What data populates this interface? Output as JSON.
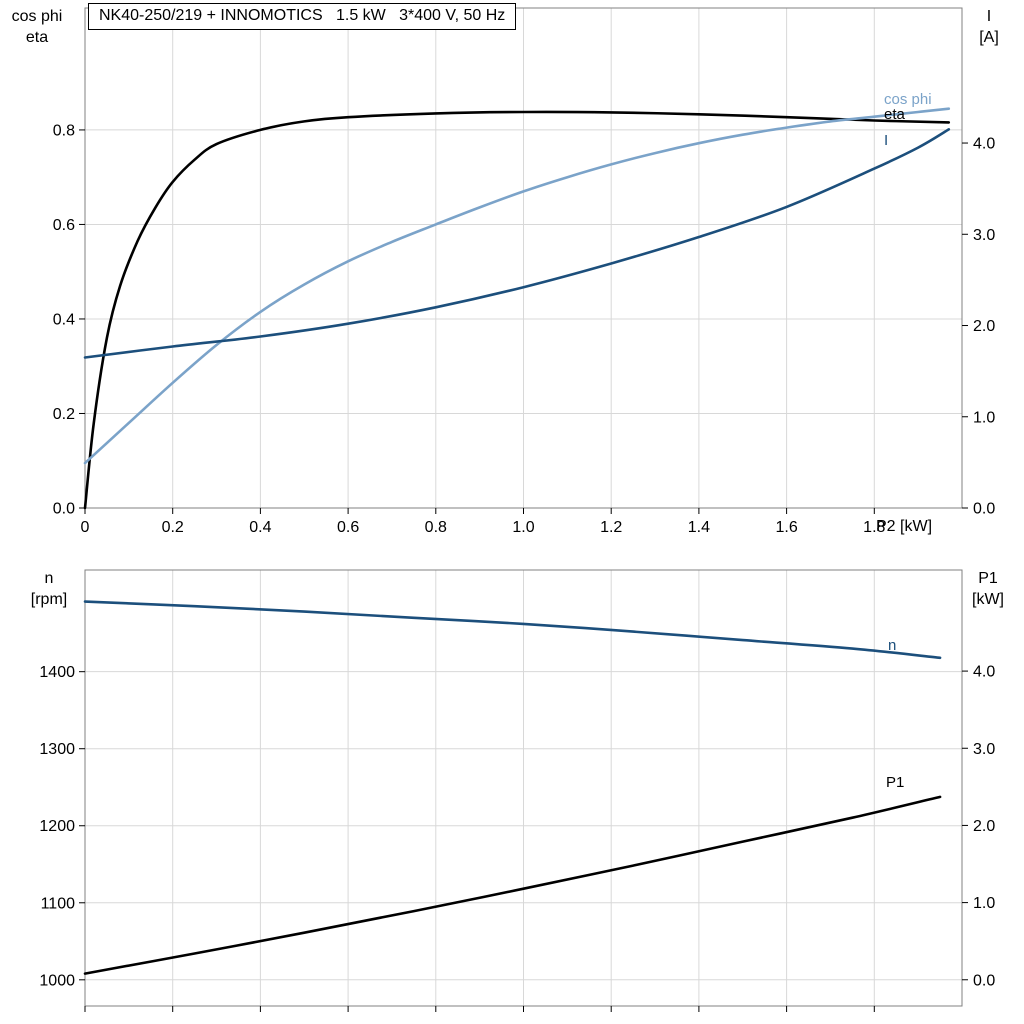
{
  "colors": {
    "grid": "#d8d8d8",
    "frame": "#808080",
    "tick": "#000000",
    "light_blue": "#7ba3c9",
    "dark_blue": "#1c4f7c",
    "black": "#000000"
  },
  "chart_data": [
    {
      "type": "line",
      "title": "NK40-250/219 + INNOMOTICS   1.5 kW   3*400 V, 50 Hz",
      "plot": {
        "x0": 85,
        "y0": 8,
        "x1": 962,
        "y1": 508
      },
      "grid": true,
      "x_axis": {
        "label": "P2 [kW]",
        "range": [
          0,
          2.0
        ],
        "ticks": [
          0,
          0.2,
          0.4,
          0.6,
          0.8,
          1.0,
          1.2,
          1.4,
          1.6,
          1.8
        ],
        "tick_labels": [
          "0",
          "0.2",
          "0.4",
          "0.6",
          "0.8",
          "1.0",
          "1.2",
          "1.4",
          "1.6",
          "1.8"
        ],
        "show_labels": true
      },
      "left_axis": {
        "label_lines": [
          "cos phi",
          "eta"
        ],
        "range": [
          0,
          1.058
        ],
        "ticks": [
          0,
          0.2,
          0.4,
          0.6,
          0.8
        ],
        "tick_labels": [
          "0.0",
          "0.2",
          "0.4",
          "0.6",
          "0.8"
        ]
      },
      "right_axis": {
        "label_lines": [
          "I",
          "[A]"
        ],
        "range": [
          0,
          5.48
        ],
        "ticks": [
          0,
          1,
          2,
          3,
          4
        ],
        "tick_labels": [
          "0.0",
          "1.0",
          "2.0",
          "3.0",
          "4.0"
        ]
      },
      "series": [
        {
          "name": "eta",
          "label": "eta",
          "axis": "left",
          "color": "#000000",
          "x": [
            0,
            0.02,
            0.05,
            0.08,
            0.12,
            0.16,
            0.2,
            0.25,
            0.3,
            0.4,
            0.5,
            0.6,
            0.8,
            1.0,
            1.2,
            1.4,
            1.6,
            1.8,
            1.97
          ],
          "y": [
            0,
            0.18,
            0.36,
            0.47,
            0.565,
            0.635,
            0.69,
            0.737,
            0.77,
            0.8,
            0.818,
            0.827,
            0.835,
            0.838,
            0.837,
            0.833,
            0.827,
            0.82,
            0.816
          ]
        },
        {
          "name": "cos phi",
          "label": "cos phi",
          "axis": "left",
          "color": "#7ba3c9",
          "x": [
            0,
            0.1,
            0.2,
            0.3,
            0.4,
            0.5,
            0.6,
            0.7,
            0.8,
            0.9,
            1.0,
            1.1,
            1.2,
            1.3,
            1.4,
            1.5,
            1.6,
            1.7,
            1.8,
            1.9,
            1.97
          ],
          "y": [
            0.095,
            0.18,
            0.265,
            0.345,
            0.415,
            0.473,
            0.522,
            0.563,
            0.6,
            0.636,
            0.67,
            0.7,
            0.727,
            0.751,
            0.772,
            0.79,
            0.805,
            0.818,
            0.828,
            0.838,
            0.845
          ]
        },
        {
          "name": "I",
          "label": "I",
          "axis": "right",
          "color": "#1c4f7c",
          "x": [
            0,
            0.2,
            0.4,
            0.6,
            0.8,
            1.0,
            1.2,
            1.4,
            1.6,
            1.8,
            1.9,
            1.97
          ],
          "y": [
            1.65,
            1.77,
            1.88,
            2.02,
            2.2,
            2.42,
            2.68,
            2.97,
            3.3,
            3.72,
            3.95,
            4.15
          ]
        }
      ]
    },
    {
      "type": "line",
      "title": "",
      "plot": {
        "x0": 85,
        "y0": 570,
        "x1": 962,
        "y1": 1006
      },
      "grid": true,
      "x_axis": {
        "label": "",
        "range": [
          0,
          2.0
        ],
        "ticks": [
          0,
          0.2,
          0.4,
          0.6,
          0.8,
          1.0,
          1.2,
          1.4,
          1.6,
          1.8
        ],
        "tick_labels": [],
        "show_labels": false
      },
      "left_axis": {
        "label_lines": [
          "n",
          "[rpm]"
        ],
        "range": [
          966,
          1532
        ],
        "ticks": [
          1000,
          1100,
          1200,
          1300,
          1400
        ],
        "tick_labels": [
          "1000",
          "1100",
          "1200",
          "1300",
          "1400"
        ]
      },
      "right_axis": {
        "label_lines": [
          "P1",
          "[kW]"
        ],
        "range": [
          -0.34,
          5.31
        ],
        "ticks": [
          0,
          1,
          2,
          3,
          4
        ],
        "tick_labels": [
          "0.0",
          "1.0",
          "2.0",
          "3.0",
          "4.0"
        ]
      },
      "series": [
        {
          "name": "n",
          "label": "n",
          "axis": "left",
          "color": "#1c4f7c",
          "x": [
            0,
            0.25,
            0.5,
            0.75,
            1.0,
            1.25,
            1.5,
            1.75,
            1.95
          ],
          "y": [
            1491,
            1485,
            1478,
            1470,
            1462,
            1452,
            1441,
            1430,
            1418
          ]
        },
        {
          "name": "P1",
          "label": "P1",
          "axis": "right",
          "color": "#000000",
          "x": [
            0,
            0.25,
            0.5,
            0.75,
            1.0,
            1.25,
            1.5,
            1.75,
            1.95
          ],
          "y": [
            0.08,
            0.34,
            0.61,
            0.89,
            1.18,
            1.48,
            1.79,
            2.1,
            2.37
          ]
        }
      ]
    }
  ]
}
